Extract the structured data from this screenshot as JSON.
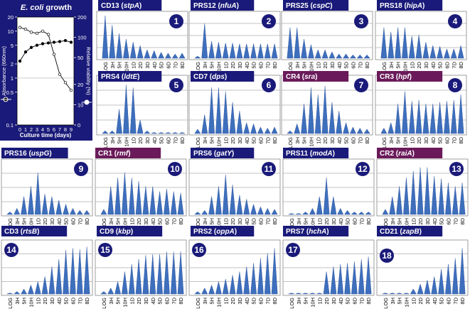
{
  "growth": {
    "title_plain": "growth",
    "title_italic": "E. coli",
    "xlabel": "Culture time (days)",
    "ylabel_left": "Absorbance (660nm)",
    "ylabel_right": "Relative viability (%)",
    "left_ticks": [
      "0.1",
      "0.5",
      "1",
      "2",
      "5",
      "10",
      "20"
    ],
    "right_ticks": [
      "0",
      "10",
      "20",
      "50",
      "100",
      "200"
    ],
    "x_ticks": [
      "0",
      "1",
      "2",
      "3",
      "4",
      "5",
      "6",
      "7",
      "8",
      "9"
    ],
    "series": [
      {
        "name": "",
        "marker": "filled",
        "x": [
          0,
          1,
          2,
          3,
          4,
          5,
          6,
          7,
          8,
          9
        ],
        "y": [
          2.3,
          3.6,
          4.5,
          5.0,
          5.4,
          5.6,
          5.8,
          6.0,
          6.3,
          5.8
        ]
      },
      {
        "name": "",
        "marker": "open",
        "x": [
          0,
          1,
          2,
          3,
          4,
          5,
          6,
          7,
          8,
          9
        ],
        "y": [
          12,
          11,
          9.5,
          9,
          10,
          8.5,
          3.2,
          1.2,
          0.8,
          0.55
        ]
      }
    ]
  },
  "x_categories": [
    "LOG",
    "3H",
    "5H",
    "10H",
    "1D",
    "2D",
    "3D",
    "4D",
    "5D",
    "6D",
    "7D",
    "8D"
  ],
  "chart_data": [
    {
      "type": "area",
      "number": "1",
      "gene": "stpA",
      "id": "CD13",
      "values": [
        1.0,
        0.78,
        0.58,
        0.45,
        0.38,
        0.3,
        0.2,
        0.18,
        0.14,
        0.12,
        0.1,
        0.12
      ]
    },
    {
      "type": "area",
      "number": "2",
      "gene": "nfuA",
      "id": "PRS12",
      "values": [
        0.05,
        0.82,
        0.4,
        0.38,
        0.36,
        0.36,
        0.34,
        0.34,
        0.34,
        0.34,
        0.34,
        0.34
      ]
    },
    {
      "type": "area",
      "number": "3",
      "gene": "cspC",
      "id": "PRS25",
      "values": [
        0.72,
        0.72,
        0.45,
        0.32,
        0.2,
        0.2,
        0.15,
        0.1,
        0.1,
        0.08,
        0.08,
        0.08
      ]
    },
    {
      "type": "area",
      "number": "4",
      "gene": "hipA",
      "id": "PRS18",
      "values": [
        0.72,
        0.62,
        0.72,
        0.72,
        0.52,
        0.55,
        0.38,
        0.3,
        0.28,
        0.22,
        0.22,
        0.3
      ]
    },
    {
      "type": "area",
      "number": "5",
      "gene": "ldtE",
      "id": "PRS4",
      "values": [
        0.05,
        0.05,
        0.45,
        0.9,
        0.85,
        0.25,
        0.05,
        0.02,
        0.02,
        0.02,
        0.02,
        0.02
      ]
    },
    {
      "type": "area",
      "number": "6",
      "gene": "dps",
      "id": "CD7",
      "values": [
        0.08,
        0.35,
        0.85,
        0.85,
        0.78,
        0.58,
        0.42,
        0.2,
        0.18,
        0.12,
        0.1,
        0.12
      ]
    },
    {
      "type": "area",
      "number": "7",
      "gene": "sra",
      "id": "CR4",
      "values": [
        0.05,
        0.18,
        0.55,
        0.85,
        0.72,
        0.88,
        0.58,
        0.42,
        0.2,
        0.12,
        0.1,
        0.08
      ]
    },
    {
      "type": "area",
      "number": "8",
      "gene": "hpf",
      "id": "CR3",
      "values": [
        0.1,
        0.2,
        0.55,
        0.78,
        0.6,
        0.62,
        0.55,
        0.55,
        0.58,
        0.6,
        0.62,
        0.72
      ]
    },
    {
      "type": "area",
      "number": "9",
      "gene": "uspG",
      "id": "PRS16",
      "values": [
        0.05,
        0.12,
        0.35,
        0.55,
        0.82,
        0.4,
        0.35,
        0.28,
        0.2,
        0.12,
        0.08,
        0.08
      ]
    },
    {
      "type": "area",
      "number": "10",
      "gene": "rmf",
      "id": "CR1",
      "values": [
        0.1,
        0.55,
        0.72,
        0.82,
        0.72,
        0.65,
        0.55,
        0.55,
        0.45,
        0.5,
        0.45,
        0.42
      ]
    },
    {
      "type": "area",
      "number": "11",
      "gene": "gatY",
      "id": "PRS6",
      "values": [
        0.05,
        0.08,
        0.35,
        0.55,
        0.78,
        0.58,
        0.38,
        0.3,
        0.2,
        0.15,
        0.12,
        0.1
      ]
    },
    {
      "type": "area",
      "number": "12",
      "gene": "modA",
      "id": "PRS11",
      "values": [
        0.02,
        0.02,
        0.05,
        0.12,
        0.35,
        0.72,
        0.35,
        0.12,
        0.08,
        0.05,
        0.05,
        0.05
      ]
    },
    {
      "type": "area",
      "number": "13",
      "gene": "raiA",
      "id": "CR2",
      "values": [
        0.1,
        0.35,
        0.55,
        0.72,
        0.85,
        0.92,
        0.92,
        0.75,
        0.7,
        0.62,
        0.55,
        0.62
      ]
    },
    {
      "type": "area",
      "number": "14",
      "gene": "rtsB",
      "id": "CD3",
      "values": [
        0.02,
        0.05,
        0.1,
        0.18,
        0.25,
        0.35,
        0.55,
        0.7,
        0.88,
        0.92,
        0.9,
        0.95
      ]
    },
    {
      "type": "area",
      "number": "15",
      "gene": "kbp",
      "id": "CD9",
      "values": [
        0.05,
        0.12,
        0.25,
        0.45,
        0.6,
        0.7,
        0.78,
        0.8,
        0.8,
        0.85,
        0.85,
        0.85
      ]
    },
    {
      "type": "area",
      "number": "16",
      "gene": "oppA",
      "id": "PRS2",
      "values": [
        0.05,
        0.12,
        0.18,
        0.25,
        0.3,
        0.38,
        0.45,
        0.55,
        0.62,
        0.72,
        0.82,
        0.92
      ]
    },
    {
      "type": "area",
      "number": "17",
      "gene": "hchA",
      "id": "PRS7",
      "values": [
        0.02,
        0.02,
        0.02,
        0.02,
        0.02,
        0.45,
        0.55,
        0.6,
        0.62,
        0.65,
        0.7,
        0.75
      ]
    },
    {
      "type": "area",
      "number": "18",
      "gene": "zapB",
      "id": "CD21",
      "values": [
        0.02,
        0.02,
        0.02,
        0.02,
        0.1,
        0.2,
        0.28,
        0.35,
        0.5,
        0.6,
        0.72,
        0.92
      ]
    }
  ],
  "colors": {
    "banner_blue": "#1a1a7a",
    "banner_purple": "#6a1a5a",
    "area_fill": "#3e6fbd",
    "area_edge": "#2a4f99",
    "growth_bg": "#1a1a7a"
  }
}
